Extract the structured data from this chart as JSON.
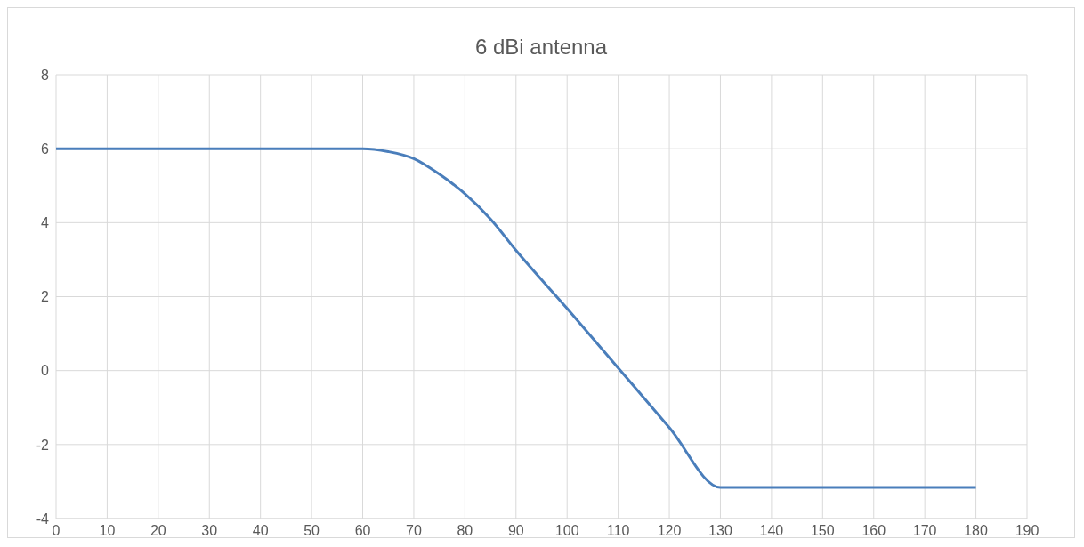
{
  "chart_data": {
    "type": "line",
    "title": "6 dBi antenna",
    "x": [
      0,
      60,
      65,
      70,
      75,
      80,
      85,
      90,
      100,
      110,
      120,
      130,
      180
    ],
    "series": [
      {
        "color": "#4a7ebb",
        "values": [
          6,
          6,
          5.92,
          5.73,
          5.31,
          4.78,
          4.1,
          3.25,
          1.68,
          0.07,
          -1.54,
          -3.16,
          -3.16
        ]
      }
    ],
    "xlim": [
      0,
      190
    ],
    "xticks": [
      0,
      10,
      20,
      30,
      40,
      50,
      60,
      70,
      80,
      90,
      100,
      110,
      120,
      130,
      140,
      150,
      160,
      170,
      180,
      190
    ],
    "ylim": [
      -4,
      8
    ],
    "yticks": [
      -4,
      -2,
      0,
      2,
      4,
      6,
      8
    ],
    "grid": true,
    "marker": "none",
    "line_style": "solid"
  }
}
